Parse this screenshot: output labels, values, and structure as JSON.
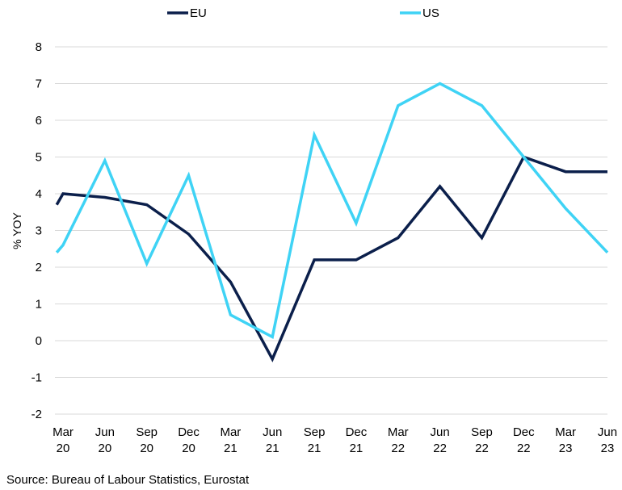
{
  "chart_data": {
    "type": "line",
    "title": "",
    "xlabel": "",
    "ylabel": "% YOY",
    "ylim": [
      -2,
      8
    ],
    "yticks": [
      -2,
      -1,
      0,
      1,
      2,
      3,
      4,
      5,
      6,
      7,
      8
    ],
    "grid": true,
    "legend_position": "top",
    "categories": [
      [
        "Mar",
        "20"
      ],
      [
        "Jun",
        "20"
      ],
      [
        "Sep",
        "20"
      ],
      [
        "Dec",
        "20"
      ],
      [
        "Mar",
        "21"
      ],
      [
        "Jun",
        "21"
      ],
      [
        "Sep",
        "21"
      ],
      [
        "Dec",
        "21"
      ],
      [
        "Mar",
        "22"
      ],
      [
        "Jun",
        "22"
      ],
      [
        "Sep",
        "22"
      ],
      [
        "Dec",
        "22"
      ],
      [
        "Mar",
        "23"
      ],
      [
        "Jun",
        "23"
      ]
    ],
    "series": [
      {
        "name": "EU",
        "color": "#0b1f4b",
        "points": [
          [
            -0.15,
            3.7
          ],
          [
            0,
            4.0
          ],
          [
            1,
            3.9
          ],
          [
            2,
            3.7
          ],
          [
            3,
            2.9
          ],
          [
            4,
            1.6
          ],
          [
            5,
            -0.5
          ],
          [
            6,
            2.2
          ],
          [
            7,
            2.2
          ],
          [
            8,
            2.8
          ],
          [
            9,
            4.2
          ],
          [
            10,
            2.8
          ],
          [
            11,
            5.0
          ],
          [
            12,
            4.6
          ],
          [
            13,
            4.6
          ]
        ]
      },
      {
        "name": "US",
        "color": "#3fd3f5",
        "points": [
          [
            -0.15,
            2.4
          ],
          [
            0,
            2.6
          ],
          [
            1,
            4.9
          ],
          [
            2,
            2.1
          ],
          [
            3,
            4.5
          ],
          [
            4,
            0.7
          ],
          [
            5,
            0.1
          ],
          [
            6,
            5.6
          ],
          [
            7,
            3.2
          ],
          [
            8,
            6.4
          ],
          [
            9,
            7.0
          ],
          [
            10,
            6.4
          ],
          [
            11,
            5.0
          ],
          [
            12,
            3.6
          ],
          [
            13,
            2.4
          ]
        ]
      }
    ]
  },
  "source": "Source: Bureau of Labour Statistics, Eurostat"
}
